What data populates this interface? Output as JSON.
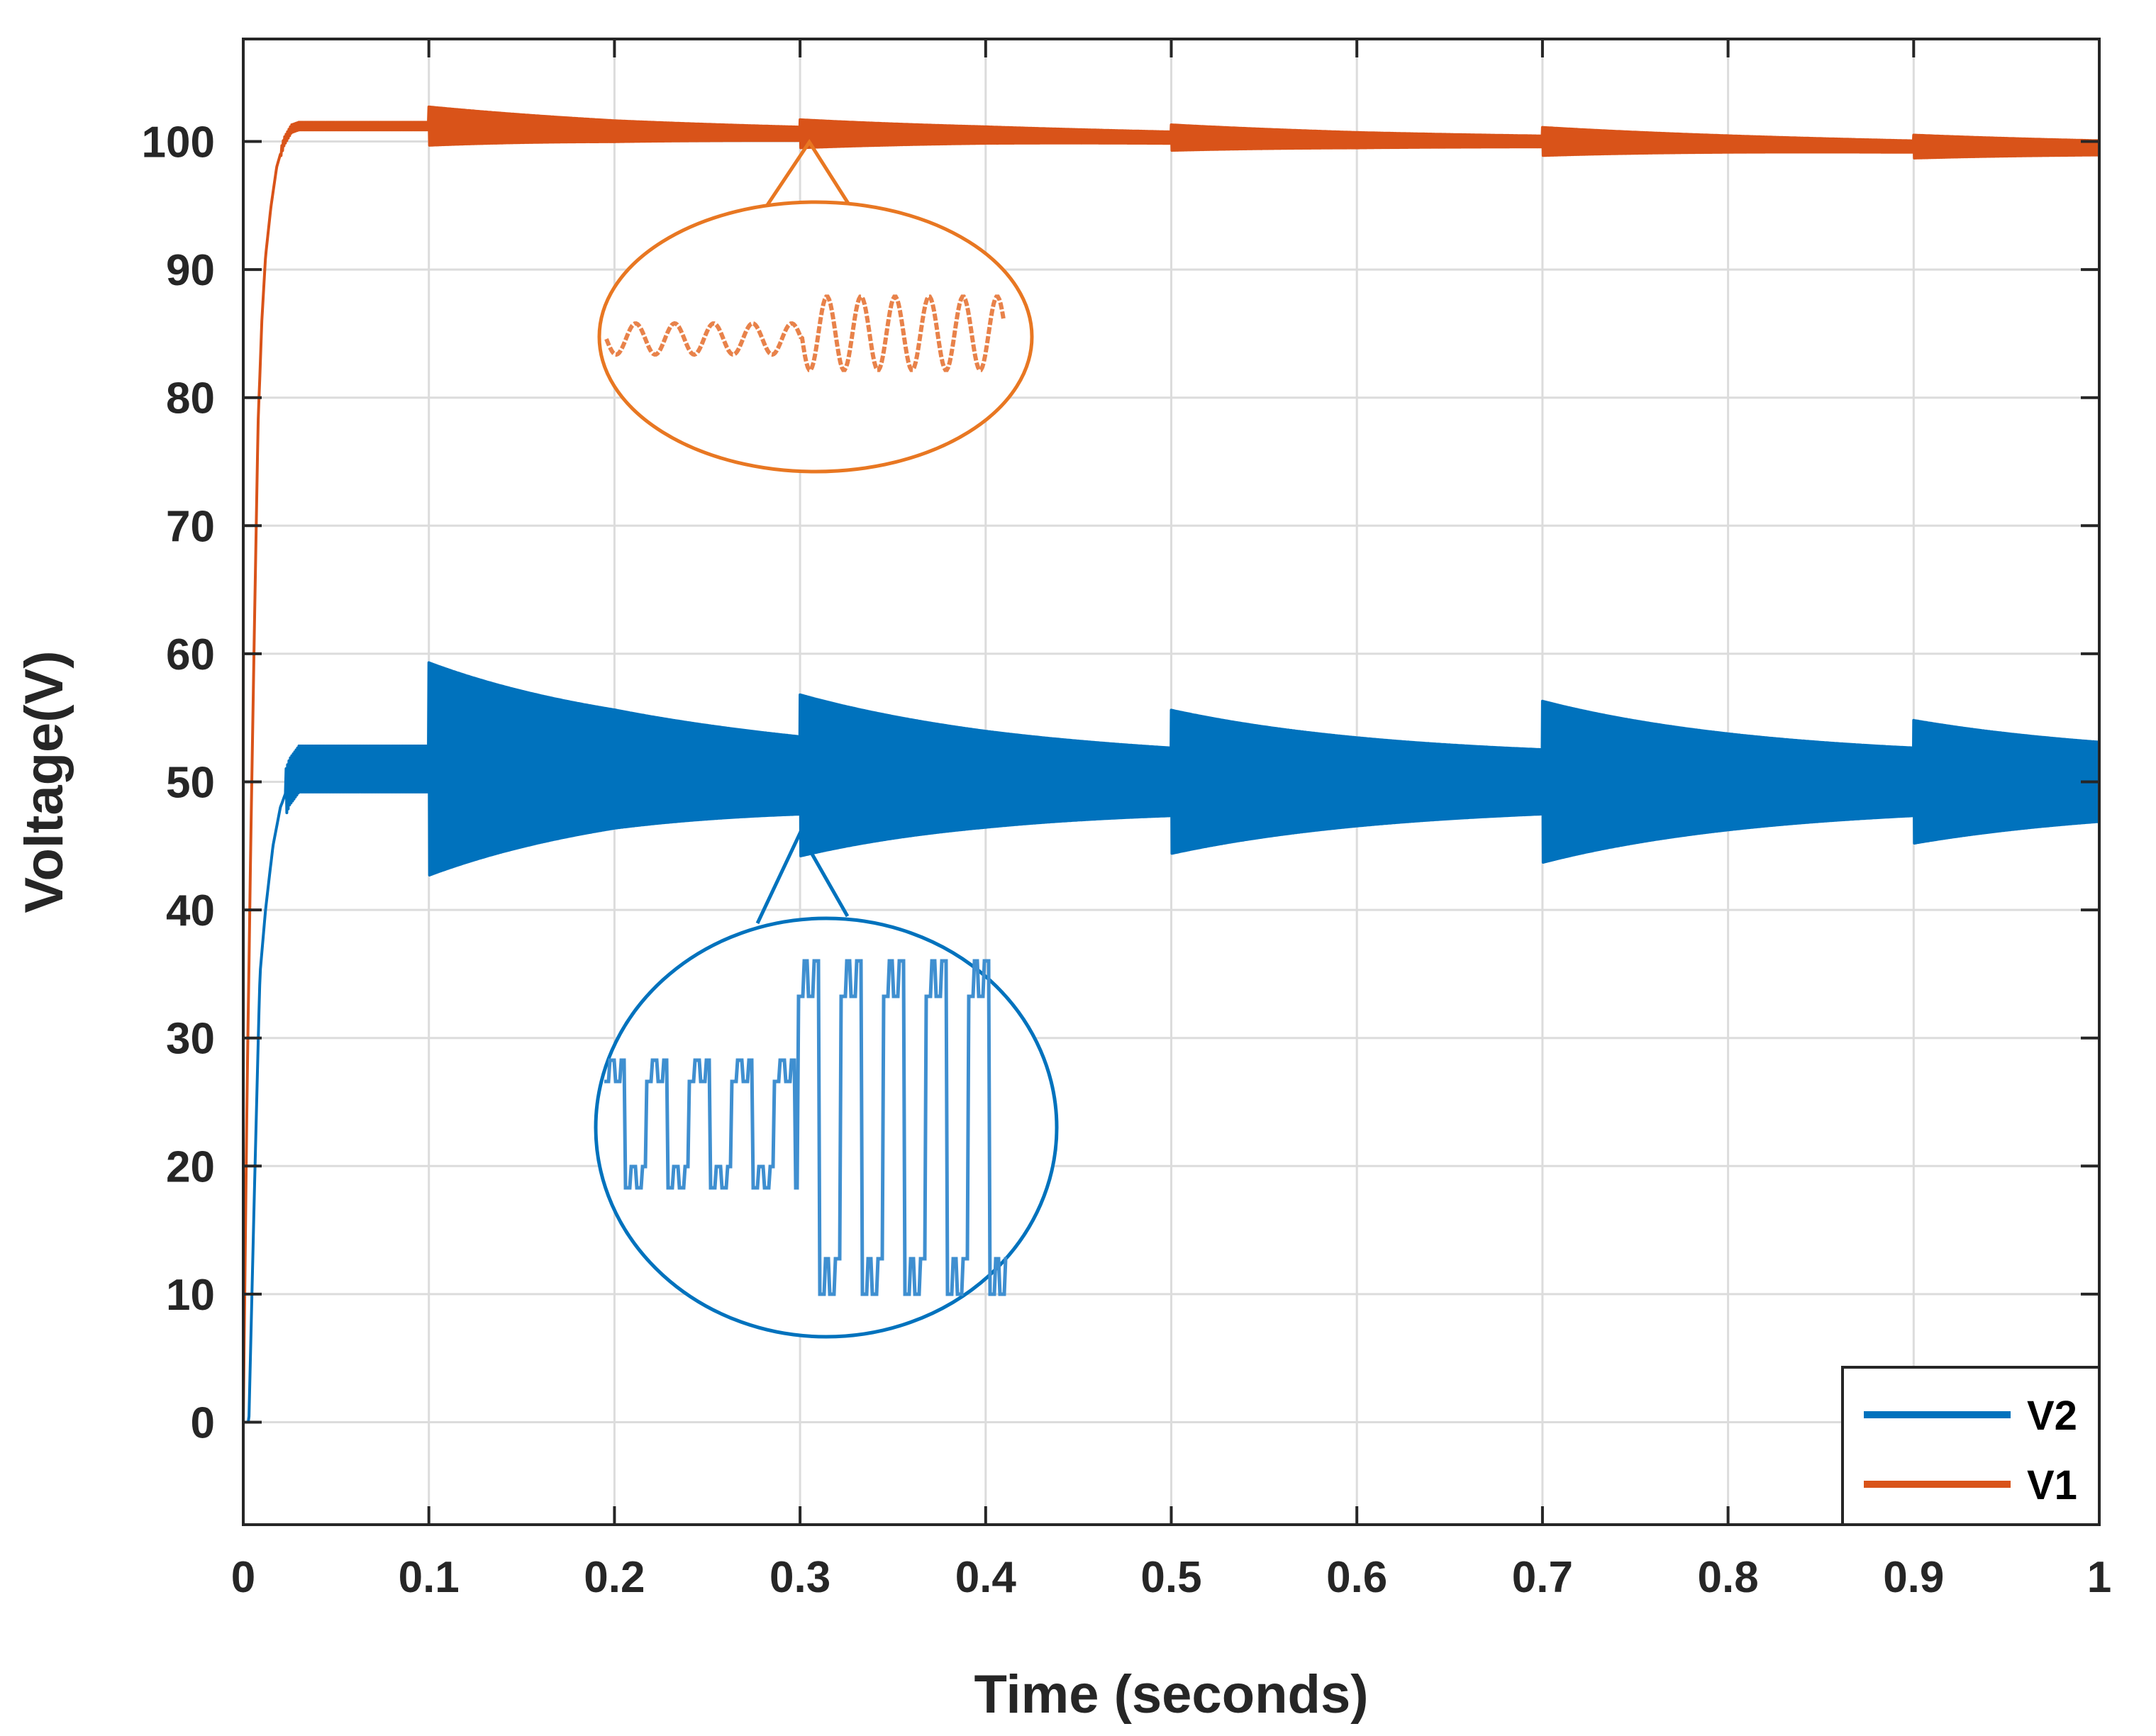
{
  "chart_data": {
    "type": "line",
    "xlabel": "Time (seconds)",
    "ylabel": "Voltage(V)",
    "xlim": [
      0,
      1
    ],
    "ylim": [
      -8,
      108
    ],
    "grid": true,
    "x_ticks": [
      0,
      0.1,
      0.2,
      0.3,
      0.4,
      0.5,
      0.6,
      0.7,
      0.8,
      0.9,
      1
    ],
    "x_tick_labels": [
      "0",
      "0.1",
      "0.2",
      "0.3",
      "0.4",
      "0.5",
      "0.6",
      "0.7",
      "0.8",
      "0.9",
      "1"
    ],
    "y_ticks": [
      0,
      10,
      20,
      30,
      40,
      50,
      60,
      70,
      80,
      90,
      100
    ],
    "y_tick_labels": [
      "0",
      "10",
      "20",
      "30",
      "40",
      "50",
      "60",
      "70",
      "80",
      "90",
      "100"
    ],
    "legend_position": "bottom-right",
    "series": [
      {
        "name": "V2",
        "color": "#0072BD",
        "x": [
          0,
          0.003,
          0.006,
          0.009,
          0.012,
          0.016,
          0.02,
          0.025,
          0.03,
          0.04,
          0.05,
          0.1,
          0.2,
          0.3,
          0.4,
          0.5,
          0.6,
          0.7,
          0.8,
          0.9,
          1.0
        ],
        "mean": [
          0,
          0,
          18,
          35,
          40,
          45,
          48,
          50,
          51,
          51,
          51,
          51,
          51,
          50.5,
          50.2,
          50,
          50,
          50,
          50,
          50,
          50
        ],
        "ripple_events": [
          {
            "t": 0.1,
            "amplitude": 6.5
          },
          {
            "t": 0.3,
            "amplitude": 4.5
          },
          {
            "t": 0.5,
            "amplitude": 3.8
          },
          {
            "t": 0.7,
            "amplitude": 4.5
          },
          {
            "t": 0.9,
            "amplitude": 3.0
          }
        ],
        "ripple_base": 1.8,
        "ripple_floor": 2.3
      },
      {
        "name": "V1",
        "color": "#D95319",
        "x": [
          0,
          0.002,
          0.004,
          0.006,
          0.008,
          0.01,
          0.012,
          0.015,
          0.018,
          0.022,
          0.026,
          0.03,
          0.04,
          0.1,
          0.2,
          0.3,
          0.4,
          0.5,
          0.6,
          0.7,
          0.8,
          0.9,
          1.0
        ],
        "mean": [
          0,
          25,
          45,
          62,
          78,
          86,
          91,
          95,
          98,
          100,
          101,
          101.2,
          101.2,
          101.2,
          100.8,
          100.6,
          100.5,
          100.3,
          100.1,
          100,
          99.8,
          99.6,
          99.5
        ],
        "ripple_events": [
          {
            "t": 0.1,
            "amplitude": 1.2
          },
          {
            "t": 0.3,
            "amplitude": 0.8
          },
          {
            "t": 0.5,
            "amplitude": 0.7
          },
          {
            "t": 0.7,
            "amplitude": 0.8
          },
          {
            "t": 0.9,
            "amplitude": 0.6
          }
        ],
        "ripple_base": 0.3,
        "ripple_floor": 0.4
      }
    ],
    "insets": [
      {
        "name": "V1-zoom",
        "anchor": {
          "t": 0.305,
          "v": 100.5
        },
        "color": "#E87722"
      },
      {
        "name": "V2-zoom",
        "anchor": {
          "t": 0.3,
          "v": 46
        },
        "color": "#0072BD"
      }
    ]
  }
}
